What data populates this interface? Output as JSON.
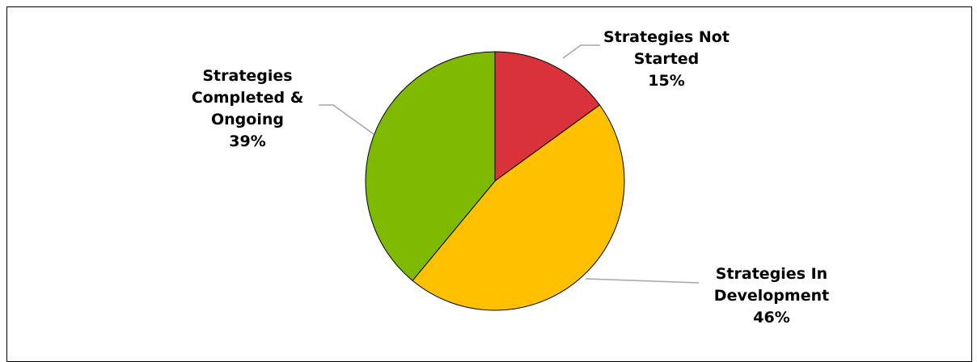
{
  "chart_data": {
    "type": "pie",
    "categories": [
      "Strategies Not Started",
      "Strategies In Development",
      "Strategies Completed & Ongoing"
    ],
    "values": [
      15,
      46,
      39
    ],
    "unit": "%",
    "colors": [
      "#d9323a",
      "#ffc000",
      "#7fba00"
    ],
    "labels": [
      {
        "lines": [
          "Strategies Not",
          "Started"
        ],
        "value": "15%"
      },
      {
        "lines": [
          "Strategies In",
          "Development"
        ],
        "value": "46%"
      },
      {
        "lines": [
          "Strategies",
          "Completed &",
          "Ongoing"
        ],
        "value": "39%"
      }
    ],
    "title": "",
    "legend": "none"
  }
}
